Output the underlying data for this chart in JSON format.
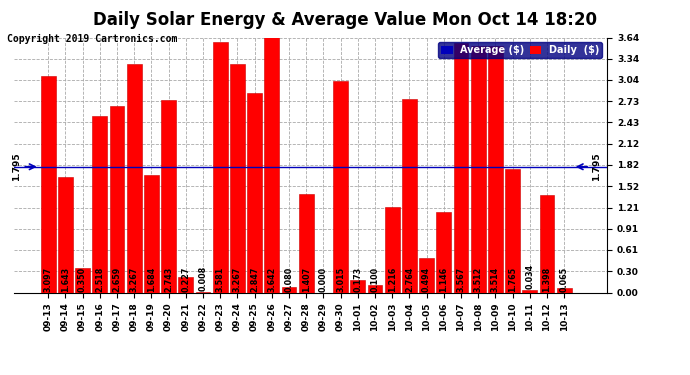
{
  "title": "Daily Solar Energy & Average Value Mon Oct 14 18:20",
  "copyright": "Copyright 2019 Cartronics.com",
  "categories": [
    "09-13",
    "09-14",
    "09-15",
    "09-16",
    "09-17",
    "09-18",
    "09-19",
    "09-20",
    "09-21",
    "09-22",
    "09-23",
    "09-24",
    "09-25",
    "09-26",
    "09-27",
    "09-28",
    "09-29",
    "09-30",
    "10-01",
    "10-02",
    "10-03",
    "10-04",
    "10-05",
    "10-06",
    "10-07",
    "10-08",
    "10-09",
    "10-10",
    "10-11",
    "10-12",
    "10-13"
  ],
  "values": [
    3.097,
    1.643,
    0.35,
    2.518,
    2.659,
    3.267,
    1.684,
    2.743,
    0.227,
    0.008,
    3.581,
    3.267,
    2.847,
    3.642,
    0.08,
    1.407,
    0.0,
    3.015,
    0.173,
    0.1,
    1.216,
    2.764,
    0.494,
    1.146,
    3.567,
    3.512,
    3.514,
    1.765,
    0.034,
    1.398,
    0.065
  ],
  "average": 1.795,
  "bar_color": "#FF0000",
  "avg_line_color": "#0000BB",
  "ylim": [
    0.0,
    3.64
  ],
  "yticks": [
    0.0,
    0.3,
    0.61,
    0.91,
    1.21,
    1.52,
    1.82,
    2.12,
    2.43,
    2.73,
    3.04,
    3.34,
    3.64
  ],
  "legend_avg_color": "#0000BB",
  "legend_daily_color": "#FF0000",
  "legend_avg_label": "Average ($)",
  "legend_daily_label": "Daily  ($)",
  "title_fontsize": 12,
  "copyright_fontsize": 7,
  "tick_fontsize": 6.5,
  "value_fontsize": 5.8,
  "bar_edge_color": "#CC0000",
  "background_color": "#FFFFFF",
  "grid_color": "#AAAAAA"
}
